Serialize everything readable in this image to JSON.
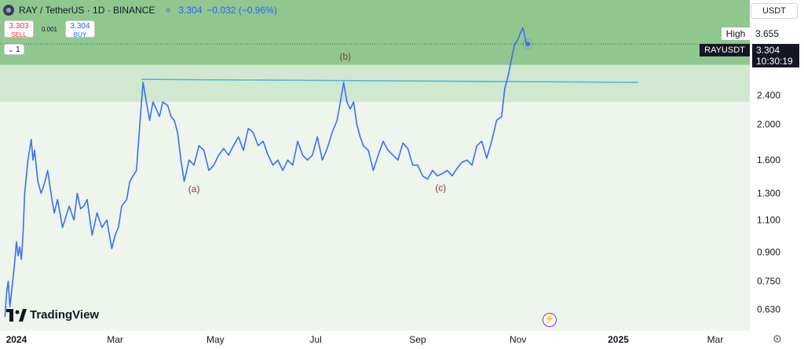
{
  "header": {
    "symbol": "RAY / TetherUS · 1D · BINANCE",
    "price": "3.304",
    "change": "−0.032 (−0.96%)"
  },
  "trade": {
    "sell_price": "3.303",
    "sell_label": "SELL",
    "spread": "0.001",
    "buy_price": "3.304",
    "buy_label": "BUY"
  },
  "indicator_toggle": "1",
  "currency": "USDT",
  "logo": "TradingView",
  "high": {
    "label": "High",
    "value": "3.655"
  },
  "current": {
    "symbol": "RAYUSDT",
    "price": "3.304",
    "countdown": "10:30:19"
  },
  "colors": {
    "line": "#3d6ef5",
    "trendline": "#4fb3d9",
    "zone_upper": "#8fc78f",
    "zone_lower": "#cfe8cf",
    "background_area": "#edf5ed",
    "annotation": "#8b3a3a"
  },
  "chart_data": {
    "type": "line",
    "scale": "log",
    "ylim": [
      0.55,
      4.35
    ],
    "y_ticks": [
      "2.400",
      "2.000",
      "1.600",
      "1.300",
      "1.100",
      "0.900",
      "0.750",
      "0.630"
    ],
    "x_ticks": [
      "2024",
      "Mar",
      "May",
      "Jul",
      "Sep",
      "Nov",
      "2025",
      "Mar"
    ],
    "x_tick_dates": [
      "2024-01-01",
      "2024-03-01",
      "2024-05-01",
      "2024-07-01",
      "2024-09-01",
      "2024-11-01",
      "2025-01-01",
      "2025-03-01"
    ],
    "x_range": [
      "2023-12-22",
      "2025-03-22"
    ],
    "series": [
      {
        "points": [
          [
            "2023-12-25",
            0.6
          ],
          [
            "2023-12-26",
            0.7
          ],
          [
            "2023-12-27",
            0.75
          ],
          [
            "2023-12-28",
            0.64
          ],
          [
            "2023-12-29",
            0.7
          ],
          [
            "2023-12-31",
            0.85
          ],
          [
            "2024-01-01",
            0.96
          ],
          [
            "2024-01-02",
            0.88
          ],
          [
            "2024-01-03",
            0.93
          ],
          [
            "2024-01-04",
            0.86
          ],
          [
            "2024-01-05",
            1.0
          ],
          [
            "2024-01-06",
            1.3
          ],
          [
            "2024-01-08",
            1.6
          ],
          [
            "2024-01-10",
            1.82
          ],
          [
            "2024-01-11",
            1.6
          ],
          [
            "2024-01-12",
            1.7
          ],
          [
            "2024-01-14",
            1.4
          ],
          [
            "2024-01-16",
            1.3
          ],
          [
            "2024-01-18",
            1.38
          ],
          [
            "2024-01-20",
            1.5
          ],
          [
            "2024-01-22",
            1.3
          ],
          [
            "2024-01-24",
            1.15
          ],
          [
            "2024-01-26",
            1.25
          ],
          [
            "2024-01-29",
            1.05
          ],
          [
            "2024-01-31",
            1.12
          ],
          [
            "2024-02-02",
            1.2
          ],
          [
            "2024-02-05",
            1.1
          ],
          [
            "2024-02-07",
            1.3
          ],
          [
            "2024-02-09",
            1.18
          ],
          [
            "2024-02-11",
            1.2
          ],
          [
            "2024-02-13",
            1.25
          ],
          [
            "2024-02-16",
            1.0
          ],
          [
            "2024-02-19",
            1.15
          ],
          [
            "2024-02-22",
            1.05
          ],
          [
            "2024-02-25",
            1.1
          ],
          [
            "2024-02-28",
            0.92
          ],
          [
            "2024-03-01",
            1.0
          ],
          [
            "2024-03-03",
            1.05
          ],
          [
            "2024-03-05",
            1.2
          ],
          [
            "2024-03-08",
            1.25
          ],
          [
            "2024-03-10",
            1.4
          ],
          [
            "2024-03-12",
            1.45
          ],
          [
            "2024-03-14",
            1.5
          ],
          [
            "2024-03-16",
            2.0
          ],
          [
            "2024-03-18",
            2.6
          ],
          [
            "2024-03-20",
            2.3
          ],
          [
            "2024-03-22",
            2.05
          ],
          [
            "2024-03-24",
            2.3
          ],
          [
            "2024-03-26",
            2.2
          ],
          [
            "2024-03-28",
            2.1
          ],
          [
            "2024-03-30",
            2.3
          ],
          [
            "2024-04-02",
            2.25
          ],
          [
            "2024-04-04",
            2.1
          ],
          [
            "2024-04-06",
            2.05
          ],
          [
            "2024-04-08",
            1.9
          ],
          [
            "2024-04-10",
            1.6
          ],
          [
            "2024-04-12",
            1.4
          ],
          [
            "2024-04-15",
            1.6
          ],
          [
            "2024-04-18",
            1.55
          ],
          [
            "2024-04-21",
            1.75
          ],
          [
            "2024-04-24",
            1.7
          ],
          [
            "2024-04-27",
            1.5
          ],
          [
            "2024-04-30",
            1.55
          ],
          [
            "2024-05-03",
            1.65
          ],
          [
            "2024-05-06",
            1.72
          ],
          [
            "2024-05-09",
            1.65
          ],
          [
            "2024-05-12",
            1.75
          ],
          [
            "2024-05-15",
            1.85
          ],
          [
            "2024-05-18",
            1.7
          ],
          [
            "2024-05-21",
            1.95
          ],
          [
            "2024-05-24",
            1.9
          ],
          [
            "2024-05-27",
            1.75
          ],
          [
            "2024-05-30",
            1.8
          ],
          [
            "2024-06-02",
            1.65
          ],
          [
            "2024-06-05",
            1.55
          ],
          [
            "2024-06-08",
            1.6
          ],
          [
            "2024-06-11",
            1.5
          ],
          [
            "2024-06-14",
            1.6
          ],
          [
            "2024-06-17",
            1.55
          ],
          [
            "2024-06-20",
            1.8
          ],
          [
            "2024-06-23",
            1.65
          ],
          [
            "2024-06-26",
            1.6
          ],
          [
            "2024-06-29",
            1.65
          ],
          [
            "2024-07-02",
            1.85
          ],
          [
            "2024-07-05",
            1.6
          ],
          [
            "2024-07-08",
            1.72
          ],
          [
            "2024-07-11",
            1.9
          ],
          [
            "2024-07-14",
            2.05
          ],
          [
            "2024-07-16",
            2.3
          ],
          [
            "2024-07-18",
            2.6
          ],
          [
            "2024-07-20",
            2.3
          ],
          [
            "2024-07-22",
            2.2
          ],
          [
            "2024-07-24",
            2.3
          ],
          [
            "2024-07-26",
            2.0
          ],
          [
            "2024-07-28",
            1.85
          ],
          [
            "2024-07-30",
            1.75
          ],
          [
            "2024-08-02",
            1.7
          ],
          [
            "2024-08-05",
            1.5
          ],
          [
            "2024-08-08",
            1.65
          ],
          [
            "2024-08-11",
            1.8
          ],
          [
            "2024-08-14",
            1.7
          ],
          [
            "2024-08-17",
            1.65
          ],
          [
            "2024-08-20",
            1.6
          ],
          [
            "2024-08-23",
            1.78
          ],
          [
            "2024-08-26",
            1.72
          ],
          [
            "2024-08-29",
            1.55
          ],
          [
            "2024-09-01",
            1.55
          ],
          [
            "2024-09-04",
            1.45
          ],
          [
            "2024-09-07",
            1.42
          ],
          [
            "2024-09-10",
            1.5
          ],
          [
            "2024-09-13",
            1.45
          ],
          [
            "2024-09-16",
            1.47
          ],
          [
            "2024-09-19",
            1.5
          ],
          [
            "2024-09-22",
            1.45
          ],
          [
            "2024-09-25",
            1.52
          ],
          [
            "2024-09-28",
            1.58
          ],
          [
            "2024-10-01",
            1.6
          ],
          [
            "2024-10-04",
            1.55
          ],
          [
            "2024-10-07",
            1.75
          ],
          [
            "2024-10-10",
            1.8
          ],
          [
            "2024-10-13",
            1.62
          ],
          [
            "2024-10-16",
            1.8
          ],
          [
            "2024-10-19",
            2.05
          ],
          [
            "2024-10-22",
            2.1
          ],
          [
            "2024-10-24",
            2.5
          ],
          [
            "2024-10-26",
            2.7
          ],
          [
            "2024-10-28",
            3.0
          ],
          [
            "2024-10-30",
            3.3
          ],
          [
            "2024-11-01",
            3.4
          ],
          [
            "2024-11-02",
            3.5
          ],
          [
            "2024-11-04",
            3.655
          ],
          [
            "2024-11-05",
            3.5
          ],
          [
            "2024-11-06",
            3.3
          ],
          [
            "2024-11-07",
            3.304
          ]
        ]
      }
    ],
    "zone_upper": [
      2.9,
      4.35
    ],
    "zone_lower": [
      2.3,
      2.9
    ],
    "trendline": {
      "from": [
        "2024-03-17",
        2.65
      ],
      "to": [
        "2025-01-13",
        2.6
      ]
    },
    "high_reference": 3.655,
    "current_price": 3.304,
    "annotations": [
      {
        "text": "(a)",
        "date": "2024-04-18",
        "value": 1.31
      },
      {
        "text": "(b)",
        "date": "2024-07-19",
        "value": 3.0
      },
      {
        "text": "(c)",
        "date": "2024-09-15",
        "value": 1.32
      }
    ]
  }
}
